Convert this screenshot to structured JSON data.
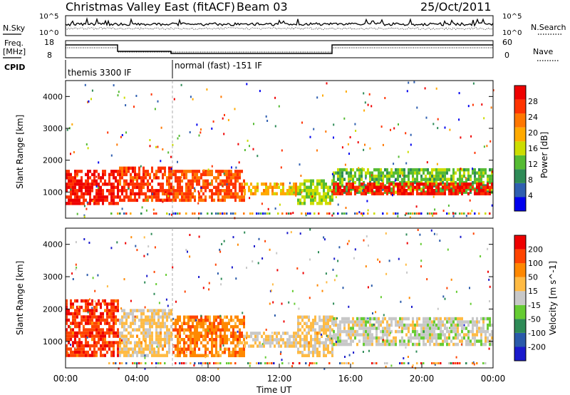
{
  "header": {
    "station": "Christmas Valley East (fitACF)",
    "beam": "Beam 03",
    "date": "25/Oct/2011"
  },
  "top_panels": {
    "nsky_label": "N.Sky",
    "nsearch_label": "N.Search",
    "left_ticks": [
      "10^5",
      "10^0"
    ],
    "right_ticks": [
      "10^5",
      "10^0"
    ],
    "freq_label_1": "Freq.",
    "freq_label_2": "[MHz]",
    "freq_ticks": [
      "18",
      "8"
    ],
    "nave_label": "Nave",
    "nave_ticks": [
      "60",
      "0"
    ],
    "cpid_label": "CPID",
    "cpid_segments": [
      {
        "label": "themis 3300 IF",
        "start_hour": 0,
        "end_hour": 6
      },
      {
        "label": "normal (fast) -151 IF",
        "start_hour": 6,
        "end_hour": 24
      }
    ]
  },
  "x_axis": {
    "label": "Time UT",
    "ticks": [
      "00:00",
      "04:00",
      "08:00",
      "12:00",
      "16:00",
      "20:00",
      "00:00"
    ]
  },
  "colors": {
    "power": [
      "#0000ee",
      "#2f5fb0",
      "#2e8b57",
      "#55bb33",
      "#ccdd00",
      "#ffaa00",
      "#ff7700",
      "#ff3300",
      "#ee0000"
    ],
    "velocity": [
      "#1a1acc",
      "#2a5aaa",
      "#2e8b57",
      "#66cc33",
      "#c8c8c8",
      "#ffbb44",
      "#ff8800",
      "#ff4400",
      "#ee0000"
    ]
  },
  "chart_data": [
    {
      "type": "heatmap",
      "panel": "power",
      "xlabel": "",
      "ylabel": "Slant Range [km]",
      "ylim": [
        180,
        4500
      ],
      "xlim": [
        0,
        24
      ],
      "y_ticks": [
        "4000",
        "3000",
        "2000",
        "1000"
      ],
      "colorbar": {
        "label": "Power [dB]",
        "ticks": [
          "28",
          "24",
          "20",
          "16",
          "12",
          "8",
          "4"
        ],
        "range": [
          0,
          30
        ]
      },
      "bands": [
        {
          "x": [
            0,
            3
          ],
          "y": [
            600,
            1700
          ],
          "value": 27
        },
        {
          "x": [
            3,
            6
          ],
          "y": [
            700,
            1800
          ],
          "value": 25
        },
        {
          "x": [
            6,
            10
          ],
          "y": [
            700,
            1700
          ],
          "value": 24
        },
        {
          "x": [
            10,
            13
          ],
          "y": [
            900,
            1300
          ],
          "value": 18
        },
        {
          "x": [
            13,
            15
          ],
          "y": [
            600,
            1400
          ],
          "value": 14
        },
        {
          "x": [
            15,
            24
          ],
          "y": [
            950,
            1750
          ],
          "value": 12
        },
        {
          "x": [
            15,
            24
          ],
          "y": [
            950,
            1300
          ],
          "value": 27
        }
      ]
    },
    {
      "type": "heatmap",
      "panel": "velocity",
      "xlabel": "Time UT",
      "ylabel": "Slant Range [km]",
      "ylim": [
        180,
        4500
      ],
      "xlim": [
        0,
        24
      ],
      "y_ticks": [
        "4000",
        "3000",
        "2000",
        "1000"
      ],
      "colorbar": {
        "label": "Velocity [m s^-1]",
        "ticks": [
          "200",
          "100",
          "50",
          "15",
          "-15",
          "-50",
          "-100",
          "-200"
        ],
        "range": [
          -250,
          250
        ]
      },
      "bands": [
        {
          "x": [
            0,
            3
          ],
          "y": [
            600,
            2300
          ],
          "value": 180
        },
        {
          "x": [
            3,
            6
          ],
          "y": [
            600,
            2000
          ],
          "value": 40
        },
        {
          "x": [
            6,
            10
          ],
          "y": [
            600,
            1800
          ],
          "value": 120
        },
        {
          "x": [
            10,
            13
          ],
          "y": [
            900,
            1300
          ],
          "value": 30
        },
        {
          "x": [
            13,
            15
          ],
          "y": [
            600,
            1800
          ],
          "value": 40
        },
        {
          "x": [
            15,
            24
          ],
          "y": [
            900,
            1750
          ],
          "value": 0
        }
      ]
    }
  ]
}
